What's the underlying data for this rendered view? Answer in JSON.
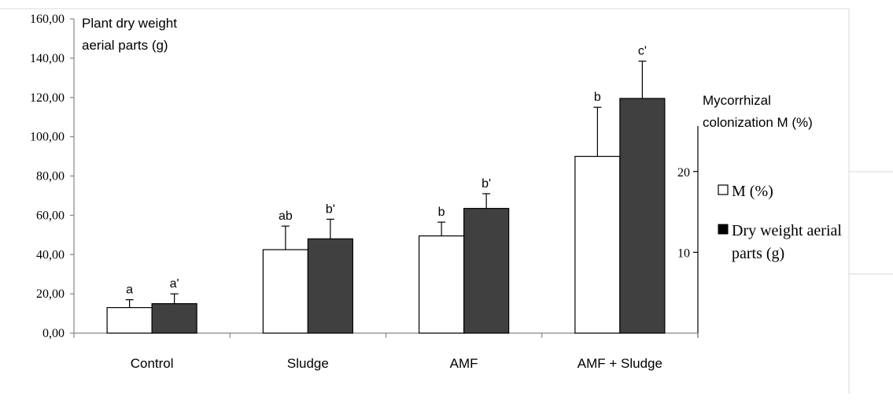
{
  "chart_data": {
    "type": "bar",
    "categories": [
      "Control",
      "Sludge",
      "AMF",
      "AMF + Sludge"
    ],
    "left_axis": {
      "title_lines": [
        "Plant  dry weight",
        "aerial parts (g)"
      ],
      "ylim": [
        0,
        160
      ],
      "ticks": [
        "0,00",
        "20,00",
        "40,00",
        "60,00",
        "80,00",
        "100,00",
        "120,00",
        "140,00",
        "160,00"
      ],
      "tick_values": [
        0,
        20,
        40,
        60,
        80,
        100,
        120,
        140,
        160
      ]
    },
    "right_axis": {
      "title_lines": [
        "Mycorrhizal",
        "colonization M (%)"
      ],
      "ylim": [
        0,
        30.5
      ],
      "ticks": [
        "10",
        "20"
      ],
      "tick_values": [
        10,
        20
      ]
    },
    "series": [
      {
        "name": "M (%)",
        "color": "#ffffff",
        "values": [
          13,
          42.5,
          49.5,
          90
        ],
        "errors": [
          4,
          12,
          7,
          25
        ],
        "sig_labels": [
          "a",
          "ab",
          "b",
          "b"
        ]
      },
      {
        "name": "Dry weight aerial parts (g)",
        "color": "#404040",
        "values": [
          15,
          48,
          63.5,
          119.5
        ],
        "errors": [
          5,
          10,
          7.5,
          19
        ],
        "sig_labels": [
          "a'",
          "b'",
          "b'",
          "c'"
        ]
      }
    ],
    "legend": {
      "placement": "right",
      "items": [
        {
          "lines": [
            "M (%)"
          ]
        },
        {
          "lines": [
            "Dry weight aerial",
            "parts (g)"
          ]
        }
      ]
    },
    "grid": false
  }
}
